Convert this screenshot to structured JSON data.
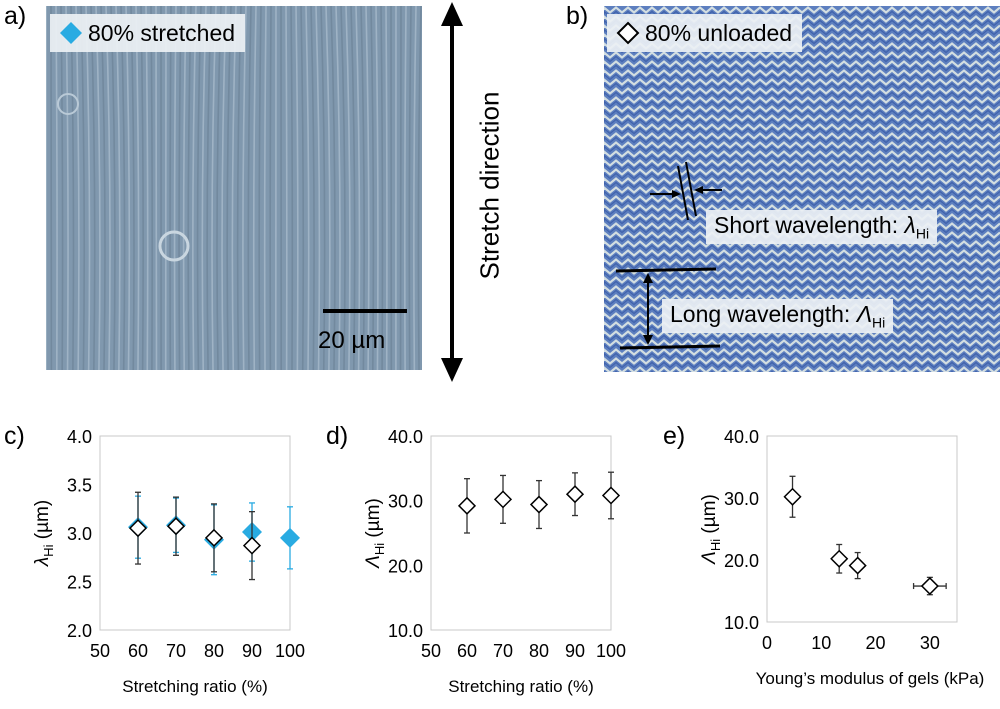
{
  "panels": {
    "a": {
      "letter": "a)",
      "legend": "80% stretched",
      "scale_bar": "20 µm"
    },
    "b": {
      "letter": "b)",
      "legend": "80% unloaded",
      "short_label": "Short wavelength: ",
      "short_symbol": "λ",
      "short_sub": "Hi",
      "long_label": "Long wavelength: ",
      "long_symbol": "Λ",
      "long_sub": "Hi"
    },
    "arrow_label": "Stretch direction"
  },
  "colors": {
    "stretched": "#29abe2",
    "unloaded": "#ffffff",
    "marker_edge": "#000000",
    "micro_a_base": "#8098ae",
    "micro_b_base": "#5d7fbf"
  },
  "chart_data": [
    {
      "id": "c",
      "letter": "c)",
      "type": "scatter",
      "xlabel": "Stretching ratio (%)",
      "ylabel_symbol": "λ",
      "ylabel_sub": "Hi",
      "ylabel_unit": " (µm)",
      "xlim": [
        50,
        100
      ],
      "ylim": [
        2.0,
        4.0
      ],
      "xticks": [
        "50",
        "60",
        "70",
        "80",
        "90",
        "100"
      ],
      "yticks": [
        "2.0",
        "2.5",
        "3.0",
        "3.5",
        "4.0"
      ],
      "series": [
        {
          "marker": "filled-diamond",
          "x": [
            60,
            70,
            80,
            90,
            100
          ],
          "y": [
            3.06,
            3.08,
            2.93,
            3.01,
            2.95
          ],
          "err": [
            0.32,
            0.28,
            0.36,
            0.3,
            0.32
          ]
        },
        {
          "marker": "open-diamond",
          "x": [
            60,
            70,
            80,
            90
          ],
          "y": [
            3.05,
            3.07,
            2.95,
            2.87
          ],
          "err": [
            0.37,
            0.3,
            0.35,
            0.35
          ]
        }
      ]
    },
    {
      "id": "d",
      "letter": "d)",
      "type": "scatter",
      "xlabel": "Stretching ratio (%)",
      "ylabel_symbol": "Λ",
      "ylabel_sub": "Hi",
      "ylabel_unit": " (µm)",
      "xlim": [
        50,
        100
      ],
      "ylim": [
        10.0,
        40.0
      ],
      "xticks": [
        "50",
        "60",
        "70",
        "80",
        "90",
        "100"
      ],
      "yticks": [
        "10.0",
        "20.0",
        "30.0",
        "40.0"
      ],
      "series": [
        {
          "marker": "open-diamond",
          "x": [
            60,
            70,
            80,
            90,
            100
          ],
          "y": [
            29.2,
            30.2,
            29.4,
            31.0,
            30.8
          ],
          "err": [
            4.2,
            3.7,
            3.7,
            3.3,
            3.6
          ]
        }
      ]
    },
    {
      "id": "e",
      "letter": "e)",
      "type": "scatter",
      "xlabel": "Young’s modulus of gels (kPa)",
      "ylabel_symbol": "Λ",
      "ylabel_sub": "Hi",
      "ylabel_unit": " (µm)",
      "xlim": [
        0,
        35
      ],
      "ylim": [
        10.0,
        40.0
      ],
      "xticks": [
        "0",
        "10",
        "20",
        "30"
      ],
      "yticks": [
        "10.0",
        "20.0",
        "30.0",
        "40.0"
      ],
      "series": [
        {
          "marker": "open-diamond",
          "x": [
            4.7,
            13.3,
            16.7,
            30.0
          ],
          "y": [
            30.2,
            20.2,
            19.1,
            15.8
          ],
          "err": [
            3.3,
            2.3,
            2.1,
            1.4
          ],
          "xerr": [
            0.0,
            0.0,
            0.0,
            3.0
          ]
        }
      ]
    }
  ]
}
